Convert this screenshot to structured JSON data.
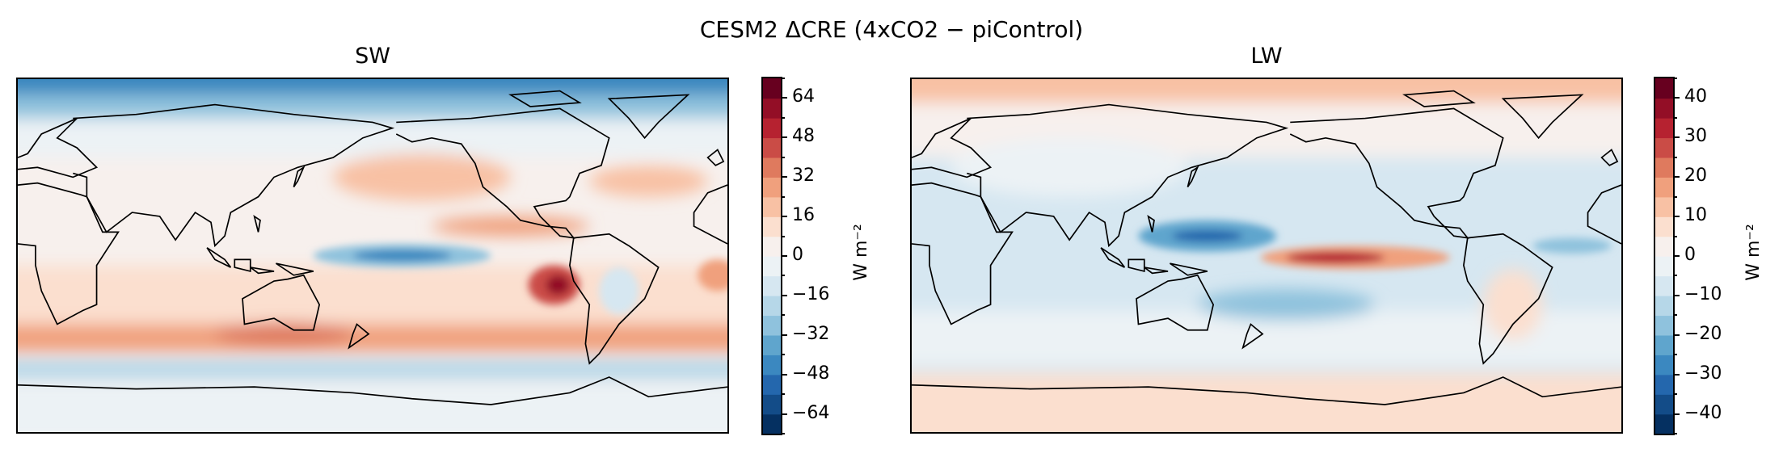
{
  "suptitle": "CESM2 ΔCRE (4xCO2 − piControl)",
  "chart_data": [
    {
      "type": "heatmap",
      "title": "SW",
      "projection": "global map, central longitude 180",
      "colormap": "RdBu_r",
      "colorbar": {
        "label": "W m⁻²",
        "range": [
          -72,
          72
        ],
        "level_step": 8,
        "ticks": [
          64,
          48,
          32,
          16,
          0,
          -16,
          -32,
          -48,
          -64
        ],
        "tick_labels": [
          "64",
          "48",
          "32",
          "16",
          "0",
          "−16",
          "−32",
          "−48",
          "−64"
        ]
      }
    },
    {
      "type": "heatmap",
      "title": "LW",
      "projection": "global map, central longitude 180",
      "colormap": "RdBu_r",
      "colorbar": {
        "label": "W m⁻²",
        "range": [
          -45,
          45
        ],
        "level_step": 5,
        "ticks": [
          40,
          30,
          20,
          10,
          0,
          -10,
          -20,
          -30,
          -40
        ],
        "tick_labels": [
          "40",
          "30",
          "20",
          "10",
          "0",
          "−10",
          "−20",
          "−30",
          "−40"
        ]
      }
    }
  ],
  "colors": [
    "#053061",
    "#134c88",
    "#2467ad",
    "#3b88c0",
    "#5fa5cd",
    "#8fc2dd",
    "#b6d7e8",
    "#d6e7f1",
    "#ecf2f5",
    "#f7f0ed",
    "#fbdfcf",
    "#f8c1a4",
    "#f0a07d",
    "#df7a5e",
    "#ca4c46",
    "#b62230",
    "#930e26",
    "#67001f"
  ]
}
